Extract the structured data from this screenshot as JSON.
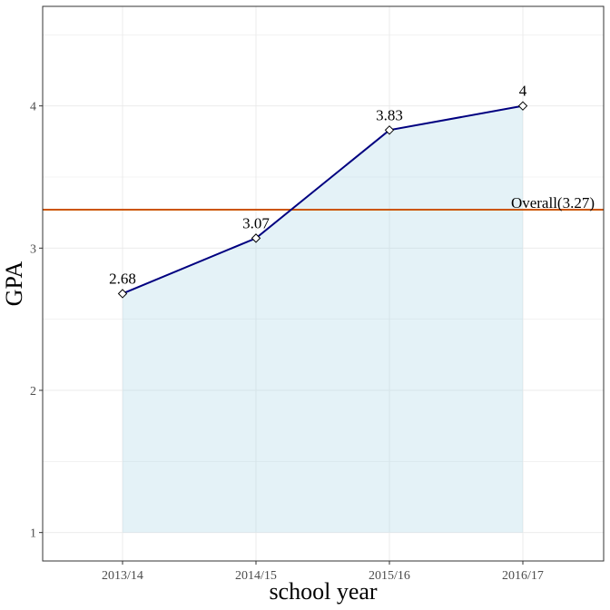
{
  "chart_data": {
    "type": "line",
    "title": "",
    "xlabel": "school year",
    "ylabel": "GPA",
    "categories": [
      "2013/14",
      "2014/15",
      "2015/16",
      "2016/17"
    ],
    "values": [
      2.68,
      3.07,
      3.83,
      4
    ],
    "data_labels": [
      "2.68",
      "3.07",
      "3.83",
      "4"
    ],
    "ylim": [
      0.8,
      4.7
    ],
    "yticks": [
      1,
      2,
      3,
      4
    ],
    "ytick_labels": [
      "1",
      "2",
      "3",
      "4"
    ],
    "grid": true,
    "area_fill": true,
    "area_baseline": 1,
    "reference_line": {
      "value": 3.27,
      "label": "Overall(3.27)"
    },
    "colors": {
      "line": "#000080",
      "area": "#add8e6",
      "reference": "#cc5500",
      "grid": "#ebebeb",
      "panel_border": "#333333"
    }
  }
}
